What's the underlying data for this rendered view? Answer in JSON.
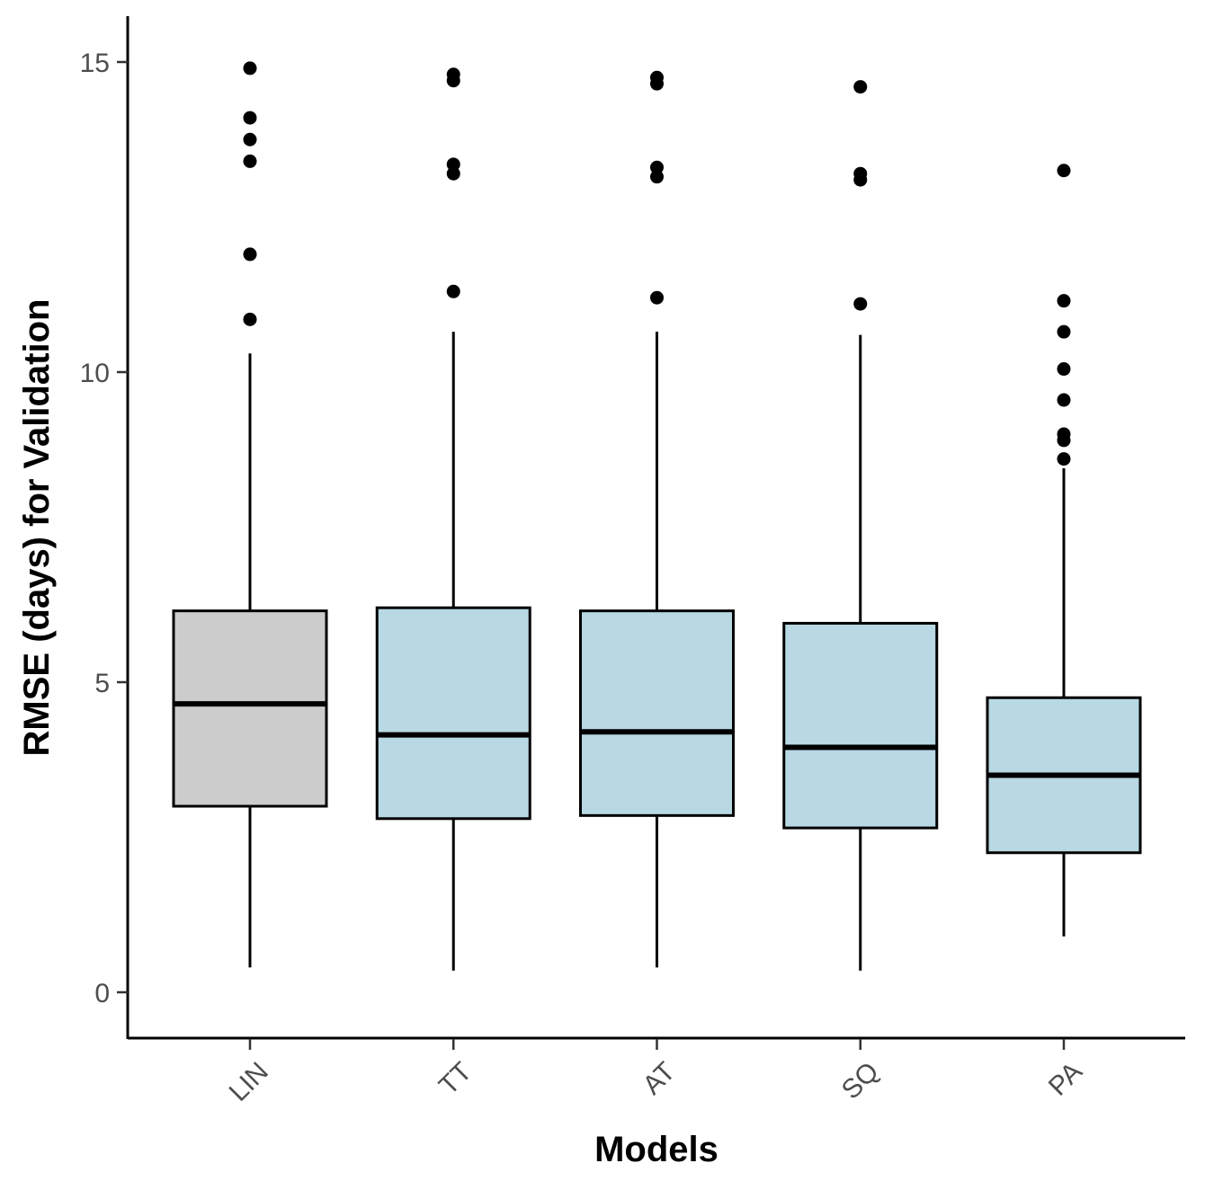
{
  "chart_data": {
    "type": "boxplot",
    "title": "",
    "xlabel": "Models",
    "ylabel": "RMSE (days) for Validation",
    "ylim": [
      -0.7,
      15.75
    ],
    "yticks": [
      0,
      5,
      10,
      15
    ],
    "grid": false,
    "legend": "none",
    "categories": [
      "LIN",
      "TT",
      "AT",
      "SQ",
      "PA"
    ],
    "colors": {
      "LIN": "#cccccc",
      "TT": "#b8d8e4",
      "AT": "#b8d8e4",
      "SQ": "#b8d8e4",
      "PA": "#b8d8e4",
      "stroke": "#000000"
    },
    "boxes": [
      {
        "category": "LIN",
        "whisker_low": 0.4,
        "q1": 3.0,
        "median": 4.65,
        "q3": 6.15,
        "whisker_high": 10.3,
        "outliers": [
          10.85,
          11.9,
          13.4,
          13.75,
          14.1,
          14.9
        ]
      },
      {
        "category": "TT",
        "whisker_low": 0.35,
        "q1": 2.8,
        "median": 4.15,
        "q3": 6.2,
        "whisker_high": 10.65,
        "outliers": [
          11.3,
          13.2,
          13.35,
          14.7,
          14.8
        ]
      },
      {
        "category": "AT",
        "whisker_low": 0.4,
        "q1": 2.85,
        "median": 4.2,
        "q3": 6.15,
        "whisker_high": 10.65,
        "outliers": [
          11.2,
          13.15,
          13.3,
          14.65,
          14.75
        ]
      },
      {
        "category": "SQ",
        "whisker_low": 0.35,
        "q1": 2.65,
        "median": 3.95,
        "q3": 5.95,
        "whisker_high": 10.6,
        "outliers": [
          11.1,
          13.1,
          13.2,
          14.6
        ]
      },
      {
        "category": "PA",
        "whisker_low": 0.9,
        "q1": 2.25,
        "median": 3.5,
        "q3": 4.75,
        "whisker_high": 8.45,
        "outliers": [
          8.6,
          8.9,
          9.0,
          9.55,
          10.05,
          10.65,
          11.15,
          13.25
        ]
      }
    ]
  }
}
